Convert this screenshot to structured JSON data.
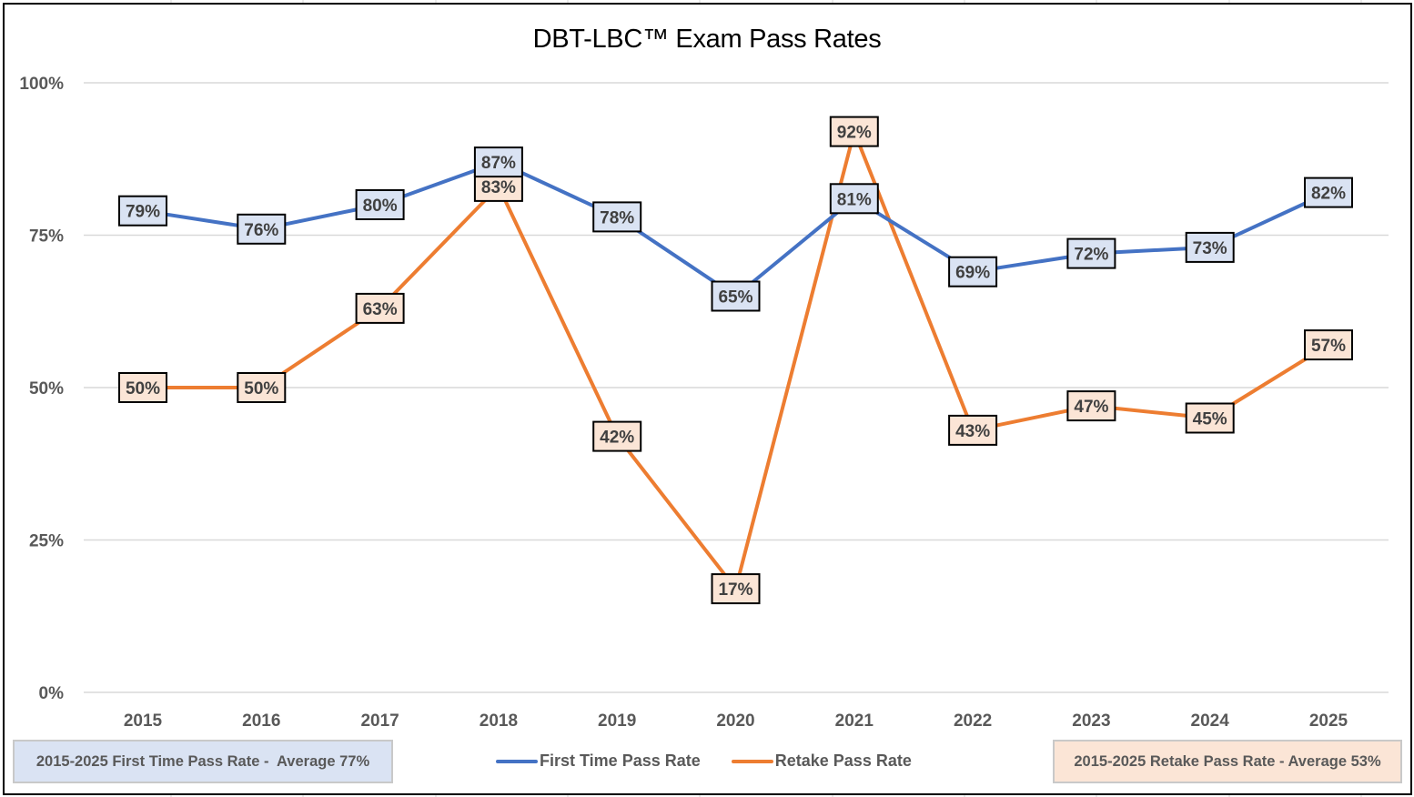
{
  "chart_data": {
    "type": "line",
    "title": "DBT-LBC™ Exam Pass Rates",
    "xlabel": "",
    "ylabel": "",
    "categories": [
      "2015",
      "2016",
      "2017",
      "2018",
      "2019",
      "2020",
      "2021",
      "2022",
      "2023",
      "2024",
      "2025"
    ],
    "ylim": [
      0,
      100
    ],
    "yticks": [
      0,
      25,
      50,
      75,
      100
    ],
    "ytick_labels": [
      "0%",
      "25%",
      "50%",
      "75%",
      "100%"
    ],
    "grid": true,
    "legend_position": "bottom",
    "series": [
      {
        "name": "First Time Pass Rate",
        "color": "#4472c4",
        "label_fill": "#dae3f3",
        "values": [
          79,
          76,
          80,
          87,
          78,
          65,
          81,
          69,
          72,
          73,
          82
        ],
        "labels": [
          "79%",
          "76%",
          "80%",
          "87%",
          "78%",
          "65%",
          "81%",
          "69%",
          "72%",
          "73%",
          "82%"
        ]
      },
      {
        "name": "Retake Pass Rate",
        "color": "#ed7d31",
        "label_fill": "#fbe5d6",
        "values": [
          50,
          50,
          63,
          83,
          42,
          17,
          92,
          43,
          47,
          45,
          57
        ],
        "labels": [
          "50%",
          "50%",
          "63%",
          "83%",
          "42%",
          "17%",
          "92%",
          "43%",
          "47%",
          "45%",
          "57%"
        ]
      }
    ],
    "annotations": {
      "first_time_average": "2015-2025 First Time Pass Rate -  Average 77%",
      "retake_average": "2015-2025 Retake Pass Rate - Average 53%"
    }
  }
}
